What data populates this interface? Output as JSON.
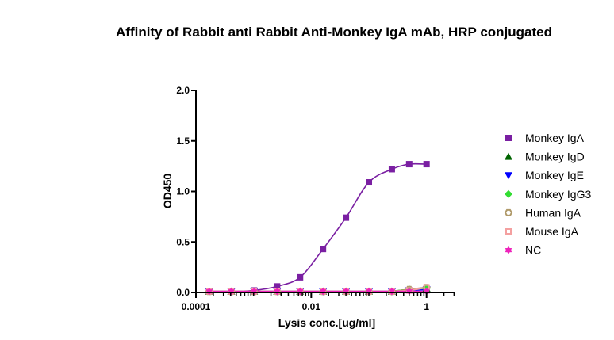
{
  "chart_data": {
    "type": "scatter",
    "title": "Affinity of Rabbit anti Rabbit Anti-Monkey IgA mAb, HRP conjugated",
    "xlabel": "Lysis conc.[ug/ml]",
    "ylabel": "OD450",
    "xscale": "log",
    "xlim": [
      0.0001,
      3.16
    ],
    "ylim": [
      0,
      2.0
    ],
    "xticks": [
      {
        "value": 0.0001,
        "label": "0.0001"
      },
      {
        "value": 0.01,
        "label": "0.01"
      },
      {
        "value": 1,
        "label": "1"
      }
    ],
    "yticks": [
      {
        "value": 0.0,
        "label": "0.0"
      },
      {
        "value": 0.5,
        "label": "0.5"
      },
      {
        "value": 1.0,
        "label": "1.0"
      },
      {
        "value": 1.5,
        "label": "1.5"
      },
      {
        "value": 2.0,
        "label": "2.0"
      }
    ],
    "grid": false,
    "legend_position": "right",
    "x": [
      0.00017,
      0.00041,
      0.00102,
      0.00256,
      0.0064,
      0.016,
      0.04,
      0.1,
      0.25,
      0.5,
      1.0
    ],
    "series": [
      {
        "name": "Monkey IgA",
        "color": "#7a1fa2",
        "marker": "square",
        "fit": true,
        "values": [
          0.01,
          0.01,
          0.02,
          0.06,
          0.15,
          0.43,
          0.74,
          1.09,
          1.22,
          1.27,
          1.27
        ]
      },
      {
        "name": "Monkey IgD",
        "color": "#006400",
        "marker": "triangle-up",
        "fit": true,
        "values": [
          0.01,
          0.01,
          0.01,
          0.01,
          0.01,
          0.01,
          0.01,
          0.01,
          0.01,
          0.03,
          0.04
        ]
      },
      {
        "name": "Monkey IgE",
        "color": "#0000ff",
        "marker": "triangle-down",
        "fit": true,
        "values": [
          0.01,
          0.01,
          0.01,
          0.01,
          0.01,
          0.01,
          0.01,
          0.01,
          0.01,
          0.02,
          0.03
        ]
      },
      {
        "name": "Monkey IgG3",
        "color": "#33dd33",
        "marker": "diamond",
        "fit": true,
        "values": [
          0.01,
          0.01,
          0.01,
          0.01,
          0.01,
          0.01,
          0.01,
          0.01,
          0.01,
          0.03,
          0.04
        ]
      },
      {
        "name": "Human IgA",
        "color": "#b09a6a",
        "marker": "hexagon-open",
        "fit": true,
        "values": [
          0.01,
          0.01,
          0.01,
          0.01,
          0.01,
          0.01,
          0.01,
          0.01,
          0.01,
          0.03,
          0.05
        ]
      },
      {
        "name": "Mouse IgA",
        "color": "#f4a0a0",
        "marker": "square-open",
        "fit": true,
        "values": [
          0.01,
          0.01,
          0.01,
          0.01,
          0.01,
          0.01,
          0.01,
          0.01,
          0.01,
          0.02,
          0.05
        ]
      },
      {
        "name": "NC",
        "color": "#ee22bb",
        "marker": "star",
        "fit": true,
        "values": [
          0.01,
          0.01,
          0.01,
          0.01,
          0.01,
          0.01,
          0.01,
          0.01,
          0.01,
          0.01,
          0.01
        ]
      }
    ]
  }
}
